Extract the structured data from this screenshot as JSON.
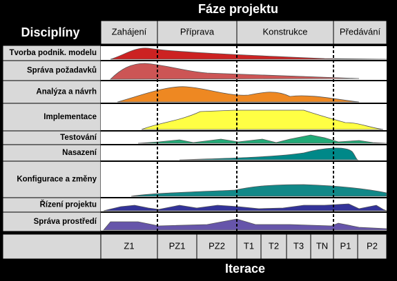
{
  "title": "Fáze projektu",
  "disciplines_header": "Disciplíny",
  "phases": [
    "Zahájení",
    "Příprava",
    "Konstrukce",
    "Předávání"
  ],
  "disciplines": [
    "Tvorba podnik. modelu",
    "Správa požadavků",
    "Analýza a návrh",
    "Implementace",
    "Testování",
    "Nasazení",
    "Konfigurace a změny",
    "Řízení projektu",
    "Správa prostředí"
  ],
  "iterations": [
    "Z1",
    "PZ1",
    "PZ2",
    "T1",
    "T2",
    "T3",
    "TN",
    "P1",
    "P2"
  ],
  "footer": "Iterace"
}
